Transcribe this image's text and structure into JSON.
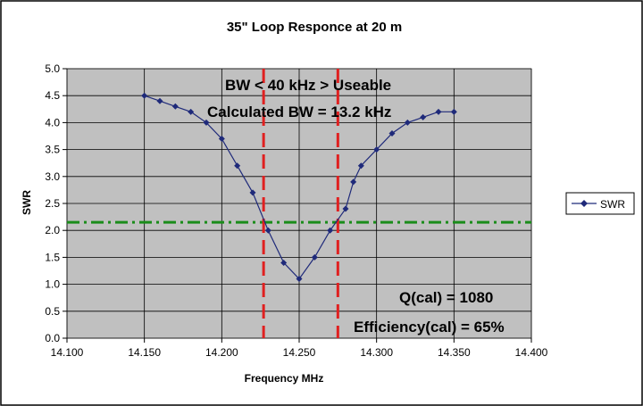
{
  "chart_data": {
    "type": "line",
    "title": "35\" Loop Responce at 20 m",
    "xlabel": "Frequency MHz",
    "ylabel": "SWR",
    "xlim": [
      14.1,
      14.4
    ],
    "ylim": [
      0,
      5
    ],
    "x_ticks": [
      "14.100",
      "14.150",
      "14.200",
      "14.250",
      "14.300",
      "14.350",
      "14.400"
    ],
    "y_ticks": [
      "0.0",
      "0.5",
      "1.0",
      "1.5",
      "2.0",
      "2.5",
      "3.0",
      "3.5",
      "4.0",
      "4.5",
      "5.0"
    ],
    "grid": true,
    "plot_background": "#c0c0c0",
    "legend_position": "right",
    "series": [
      {
        "name": "SWR",
        "color": "#1f2a7a",
        "marker": "diamond",
        "x": [
          14.15,
          14.16,
          14.17,
          14.18,
          14.19,
          14.2,
          14.21,
          14.22,
          14.23,
          14.24,
          14.25,
          14.26,
          14.27,
          14.28,
          14.285,
          14.29,
          14.3,
          14.31,
          14.32,
          14.33,
          14.34,
          14.35
        ],
        "y": [
          4.5,
          4.4,
          4.3,
          4.2,
          4.0,
          3.7,
          3.2,
          2.7,
          2.0,
          1.4,
          1.1,
          1.5,
          2.0,
          2.4,
          2.9,
          3.2,
          3.5,
          3.8,
          4.0,
          4.1,
          4.2,
          4.2
        ]
      }
    ],
    "reference_lines": [
      {
        "orientation": "horizontal",
        "value": 2.15,
        "color": "#1a8c1a",
        "style": "dash-dot"
      },
      {
        "orientation": "vertical",
        "value": 14.227,
        "color": "#e02020",
        "style": "dashed"
      },
      {
        "orientation": "vertical",
        "value": 14.275,
        "color": "#e02020",
        "style": "dashed"
      }
    ],
    "annotations": [
      "BW < 40 kHz > Useable",
      "Calculated BW = 13.2 kHz",
      "Q(cal) =  1080",
      "Efficiency(cal) = 65%"
    ]
  }
}
